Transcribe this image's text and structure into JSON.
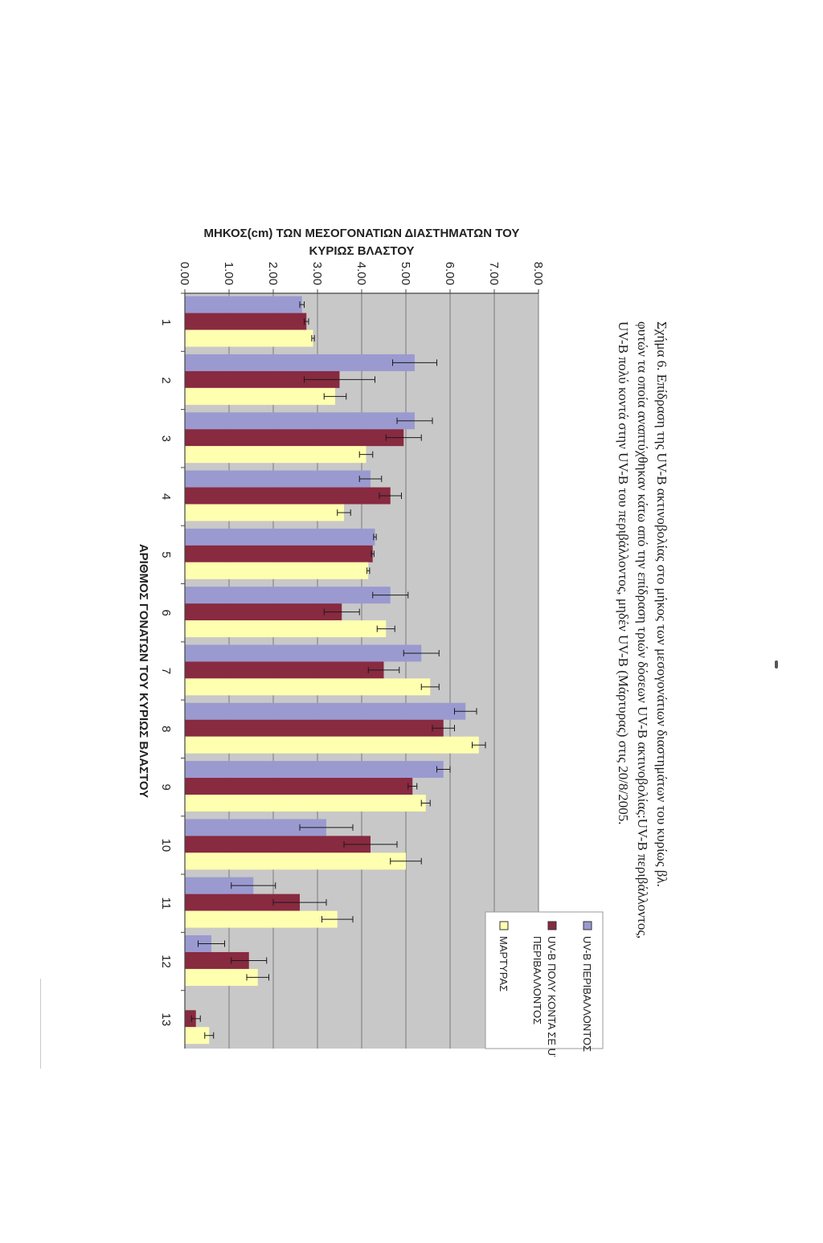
{
  "chart_data": {
    "type": "bar",
    "orientation": "vertical",
    "categories": [
      "1",
      "2",
      "3",
      "4",
      "5",
      "6",
      "7",
      "8",
      "9",
      "10",
      "11",
      "12",
      "13"
    ],
    "series": [
      {
        "name": "UV-B ΠΕΡΙΒΑΛΛΟΝΤΟΣ",
        "values": [
          2.65,
          5.2,
          5.2,
          4.2,
          4.3,
          4.65,
          5.35,
          6.35,
          5.85,
          3.2,
          1.55,
          0.6,
          0.0
        ],
        "errors": [
          0.05,
          0.5,
          0.4,
          0.25,
          0.03,
          0.4,
          0.4,
          0.25,
          0.15,
          0.6,
          0.5,
          0.3,
          0.0
        ],
        "color": "#9a9ad0"
      },
      {
        "name": "UV-B ΠΟΛΥ ΚΟΝΤΑ ΣΕ UV-B ΠΕΡΙΒΑΛΛΟΝΤΟΣ",
        "values": [
          2.75,
          3.5,
          4.95,
          4.65,
          4.25,
          3.55,
          4.5,
          5.85,
          5.15,
          4.2,
          2.6,
          1.45,
          0.25
        ],
        "errors": [
          0.05,
          0.8,
          0.4,
          0.25,
          0.03,
          0.4,
          0.35,
          0.25,
          0.1,
          0.6,
          0.6,
          0.4,
          0.1
        ],
        "color": "#882a40"
      },
      {
        "name": "ΜΑΡΤΥΡΑΣ",
        "values": [
          2.9,
          3.4,
          4.1,
          3.6,
          4.15,
          4.55,
          5.55,
          6.65,
          5.45,
          5.0,
          3.45,
          1.65,
          0.55
        ],
        "errors": [
          0.03,
          0.25,
          0.15,
          0.15,
          0.03,
          0.2,
          0.2,
          0.15,
          0.1,
          0.35,
          0.35,
          0.25,
          0.1
        ],
        "color": "#ffffb0"
      }
    ],
    "ylim": [
      0,
      8
    ],
    "yticks": [
      "0.00",
      "1.00",
      "2.00",
      "3.00",
      "4.00",
      "5.00",
      "6.00",
      "7.00",
      "8.00"
    ],
    "ylabel_line1": "ΜΗΚΟΣ(cm) ΤΩΝ ΜΕΣΟΓΟΝΑΤΙΩΝ ΔΙΑΣΤΗΜΑΤΩΝ ΤΟΥ",
    "ylabel_line2": "ΚΥΡΙΩΣ ΒΛΑΣΤΟΥ",
    "xlabel": "ΑΡΙΘΜΟΣ ΓΟΝΑΤΩΝ ΤΟΥ ΚΥΡΙΩΣ ΒΛΑΣΤΟΥ",
    "legend_position": "top-right",
    "legend": {
      "entry1": "UV-B ΠΕΡΙΒΑΛΛΟΝΤΟΣ",
      "entry2_line1": "UV-B ΠΟΛΥ ΚΟΝΤΑ ΣΕ UV-B",
      "entry2_line2": "ΠΕΡΙΒΑΛΛΟΝΤΟΣ",
      "entry3": "ΜΑΡΤΥΡΑΣ"
    },
    "grid": true,
    "plot_background": "#c8c8c8"
  },
  "caption": {
    "line1": "Σχήμα 6. Επίδραση της UV-B ακτινοβολίας στο μήκος των μεσογονάτιων διαστημάτων του κυρίως βλ.",
    "line2": "φυτών τα οποία αναπτύχθηκαν κάτω από την επίδραση τριών δόσεων UV-B ακτινοβολίας:UV-B περιβάλλοντος,",
    "line3": "UV-B πολύ κοντά στην UV-B του περιβάλλοντος, μηδέν UV-B (Μάρτυρας) στις 20/8/2005."
  }
}
